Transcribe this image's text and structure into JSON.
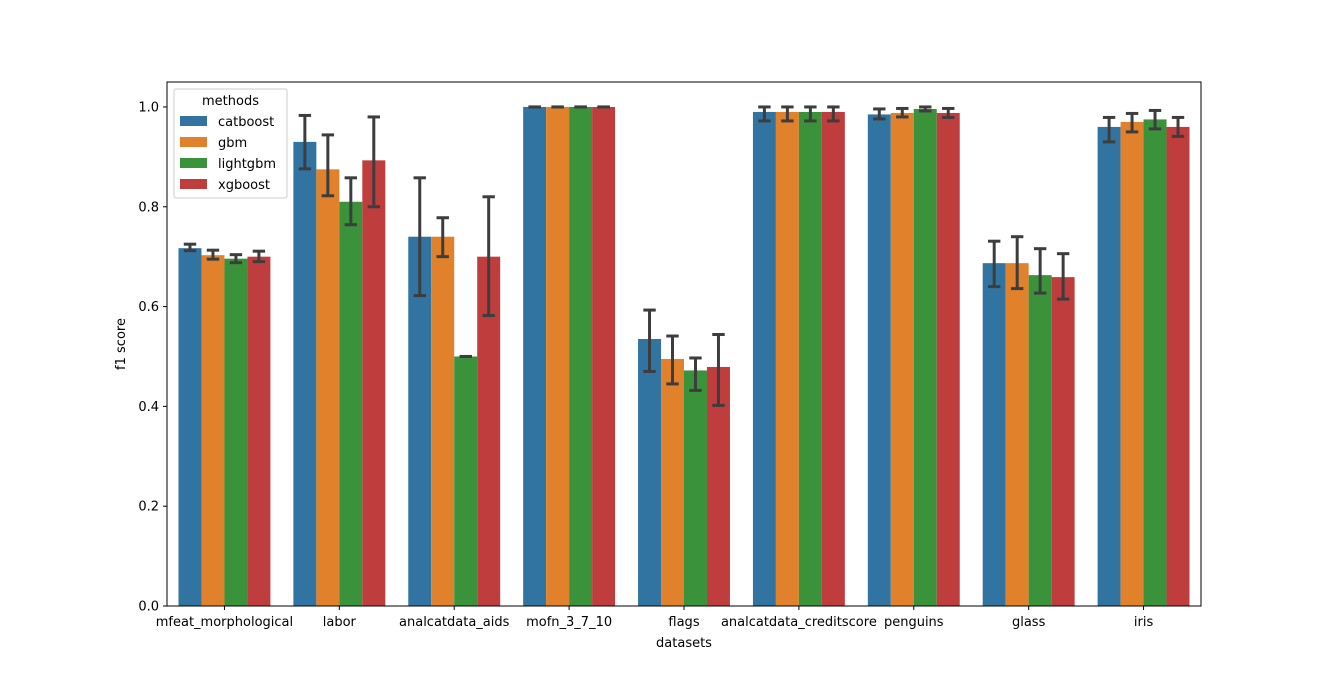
{
  "chart_data": {
    "type": "bar",
    "xlabel": "datasets",
    "ylabel": "f1 score",
    "ylim": [
      0,
      1.05
    ],
    "yticks": [
      0.0,
      0.2,
      0.4,
      0.6,
      0.8,
      1.0
    ],
    "ytick_labels": [
      "0.0",
      "0.2",
      "0.4",
      "0.6",
      "0.8",
      "1.0"
    ],
    "grid": false,
    "legend": {
      "title": "methods",
      "placement": "upper-left"
    },
    "categories": [
      "mfeat_morphological",
      "labor",
      "analcatdata_aids",
      "mofn_3_7_10",
      "flags",
      "analcatdata_creditscore",
      "penguins",
      "glass",
      "iris"
    ],
    "series": [
      {
        "name": "catboost",
        "color": "#3274a1",
        "values": [
          0.717,
          0.93,
          0.74,
          1.0,
          0.535,
          0.99,
          0.985,
          0.687,
          0.96
        ],
        "err_low": [
          0.712,
          0.876,
          0.622,
          1.0,
          0.47,
          0.972,
          0.976,
          0.64,
          0.93
        ],
        "err_high": [
          0.725,
          0.983,
          0.858,
          1.0,
          0.593,
          1.0,
          0.996,
          0.731,
          0.979
        ]
      },
      {
        "name": "gbm",
        "color": "#e1812c",
        "values": [
          0.703,
          0.875,
          0.74,
          1.0,
          0.495,
          0.99,
          0.988,
          0.687,
          0.97
        ],
        "err_low": [
          0.695,
          0.822,
          0.7,
          1.0,
          0.445,
          0.972,
          0.98,
          0.636,
          0.95
        ],
        "err_high": [
          0.713,
          0.944,
          0.778,
          1.0,
          0.541,
          1.0,
          0.997,
          0.74,
          0.987
        ]
      },
      {
        "name": "lightgbm",
        "color": "#3a923a",
        "values": [
          0.696,
          0.81,
          0.5,
          1.0,
          0.472,
          0.99,
          0.996,
          0.663,
          0.975
        ],
        "err_low": [
          0.688,
          0.764,
          0.5,
          1.0,
          0.432,
          0.972,
          0.992,
          0.627,
          0.956
        ],
        "err_high": [
          0.704,
          0.858,
          0.5,
          1.0,
          0.497,
          1.0,
          1.0,
          0.716,
          0.993
        ]
      },
      {
        "name": "xgboost",
        "color": "#c03d3e",
        "values": [
          0.7,
          0.893,
          0.7,
          1.0,
          0.479,
          0.99,
          0.988,
          0.659,
          0.96
        ],
        "err_low": [
          0.69,
          0.8,
          0.582,
          1.0,
          0.402,
          0.972,
          0.979,
          0.615,
          0.941
        ],
        "err_high": [
          0.711,
          0.98,
          0.82,
          1.0,
          0.544,
          1.0,
          0.997,
          0.706,
          0.979
        ]
      }
    ]
  }
}
